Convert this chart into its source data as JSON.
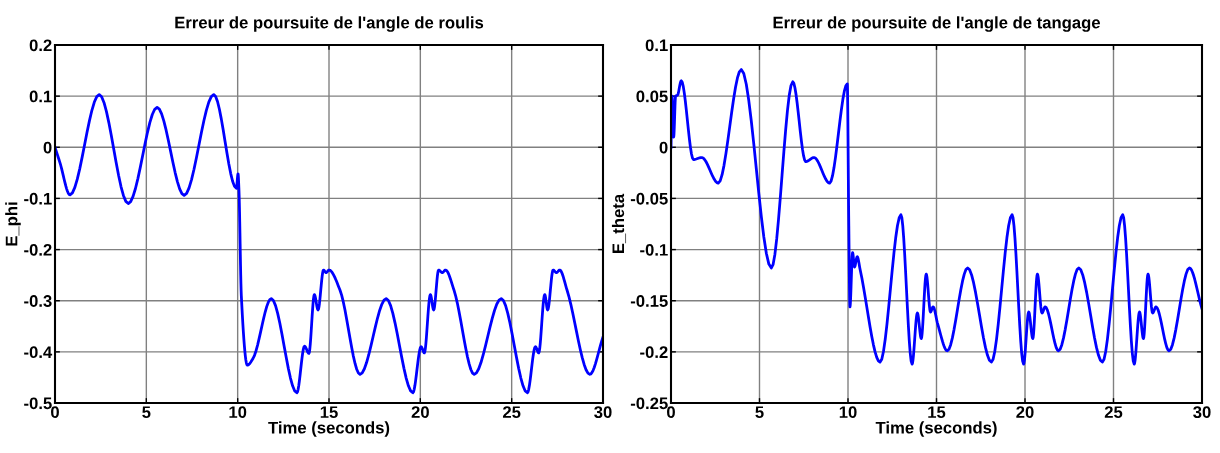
{
  "chart_data": [
    {
      "type": "line",
      "title": "Erreur de poursuite de l'angle de roulis",
      "xlabel": "Time (seconds)",
      "ylabel": "E_phi",
      "xlim": [
        0,
        30
      ],
      "ylim": [
        -0.5,
        0.2
      ],
      "xticks": [
        0,
        5,
        10,
        15,
        20,
        25,
        30
      ],
      "yticks": [
        -0.5,
        -0.4,
        -0.3,
        -0.2,
        -0.1,
        0,
        0.1,
        0.2
      ],
      "grid": true,
      "legend": false,
      "marker": "none",
      "line_style": "solid",
      "series": [
        {
          "color": "#0000ff",
          "x": [
            0,
            0.27,
            0.82,
            2.42,
            4.01,
            5.59,
            7.07,
            8.69,
            9.93,
            10.02,
            10.07,
            10.2,
            10.53,
            10.84,
            11.84,
            13.24,
            13.66,
            13.9,
            14.2,
            14.4,
            14.7,
            14.84,
            15.0,
            15.6,
            16.7,
            18.13,
            19.59,
            20.04,
            20.22,
            20.55,
            20.73,
            21.0,
            21.2,
            21.38,
            21.84,
            22.95,
            24.43,
            25.86,
            26.3,
            26.48,
            26.81,
            26.97,
            27.27,
            27.45,
            27.63,
            28.03,
            29.28,
            30
          ],
          "values": [
            0,
            -0.03,
            -0.093,
            0.103,
            -0.11,
            0.078,
            -0.094,
            0.103,
            -0.08,
            -0.052,
            -0.083,
            -0.29,
            -0.426,
            -0.413,
            -0.296,
            -0.48,
            -0.389,
            -0.403,
            -0.288,
            -0.318,
            -0.24,
            -0.245,
            -0.24,
            -0.279,
            -0.444,
            -0.296,
            -0.48,
            -0.39,
            -0.402,
            -0.288,
            -0.318,
            -0.24,
            -0.245,
            -0.24,
            -0.279,
            -0.444,
            -0.296,
            -0.48,
            -0.39,
            -0.402,
            -0.288,
            -0.318,
            -0.24,
            -0.245,
            -0.24,
            -0.279,
            -0.444,
            -0.371
          ]
        }
      ]
    },
    {
      "type": "line",
      "title": "Erreur de poursuite de l'angle de tangage",
      "xlabel": "Time (seconds)",
      "ylabel": "E_theta",
      "xlim": [
        0,
        30
      ],
      "ylim": [
        -0.25,
        0.1
      ],
      "xticks": [
        0,
        5,
        10,
        15,
        20,
        25,
        30
      ],
      "yticks": [
        -0.25,
        -0.2,
        -0.15,
        -0.1,
        -0.05,
        0,
        0.05,
        0.1
      ],
      "grid": true,
      "legend": false,
      "marker": "none",
      "line_style": "solid",
      "series": [
        {
          "color": "#0000ff",
          "x": [
            0,
            0.06,
            0.15,
            0.26,
            0.37,
            0.58,
            1.27,
            1.74,
            2.67,
            3.97,
            5.67,
            6.88,
            7.61,
            8.08,
            8.96,
            9.96,
            10.04,
            10.11,
            10.26,
            10.37,
            10.52,
            10.69,
            11.81,
            12.99,
            13.62,
            13.92,
            14.14,
            14.42,
            14.66,
            14.81,
            15.07,
            15.61,
            16.76,
            18.1,
            19.27,
            19.92,
            20.21,
            20.44,
            20.7,
            20.96,
            21.14,
            21.89,
            23.04,
            24.37,
            25.52,
            26.17,
            26.47,
            26.69,
            26.95,
            27.21,
            27.4,
            28.14,
            29.29,
            30
          ],
          "values": [
            0,
            0.05,
            0.01,
            0.05,
            0.051,
            0.065,
            -0.012,
            -0.01,
            -0.035,
            0.076,
            -0.118,
            0.064,
            -0.014,
            -0.01,
            -0.035,
            0.062,
            -0.068,
            -0.156,
            -0.103,
            -0.117,
            -0.107,
            -0.12,
            -0.21,
            -0.066,
            -0.212,
            -0.162,
            -0.187,
            -0.124,
            -0.161,
            -0.156,
            -0.173,
            -0.199,
            -0.118,
            -0.21,
            -0.066,
            -0.212,
            -0.161,
            -0.187,
            -0.124,
            -0.162,
            -0.156,
            -0.199,
            -0.118,
            -0.21,
            -0.066,
            -0.212,
            -0.161,
            -0.187,
            -0.124,
            -0.162,
            -0.156,
            -0.199,
            -0.118,
            -0.158
          ]
        }
      ]
    }
  ]
}
